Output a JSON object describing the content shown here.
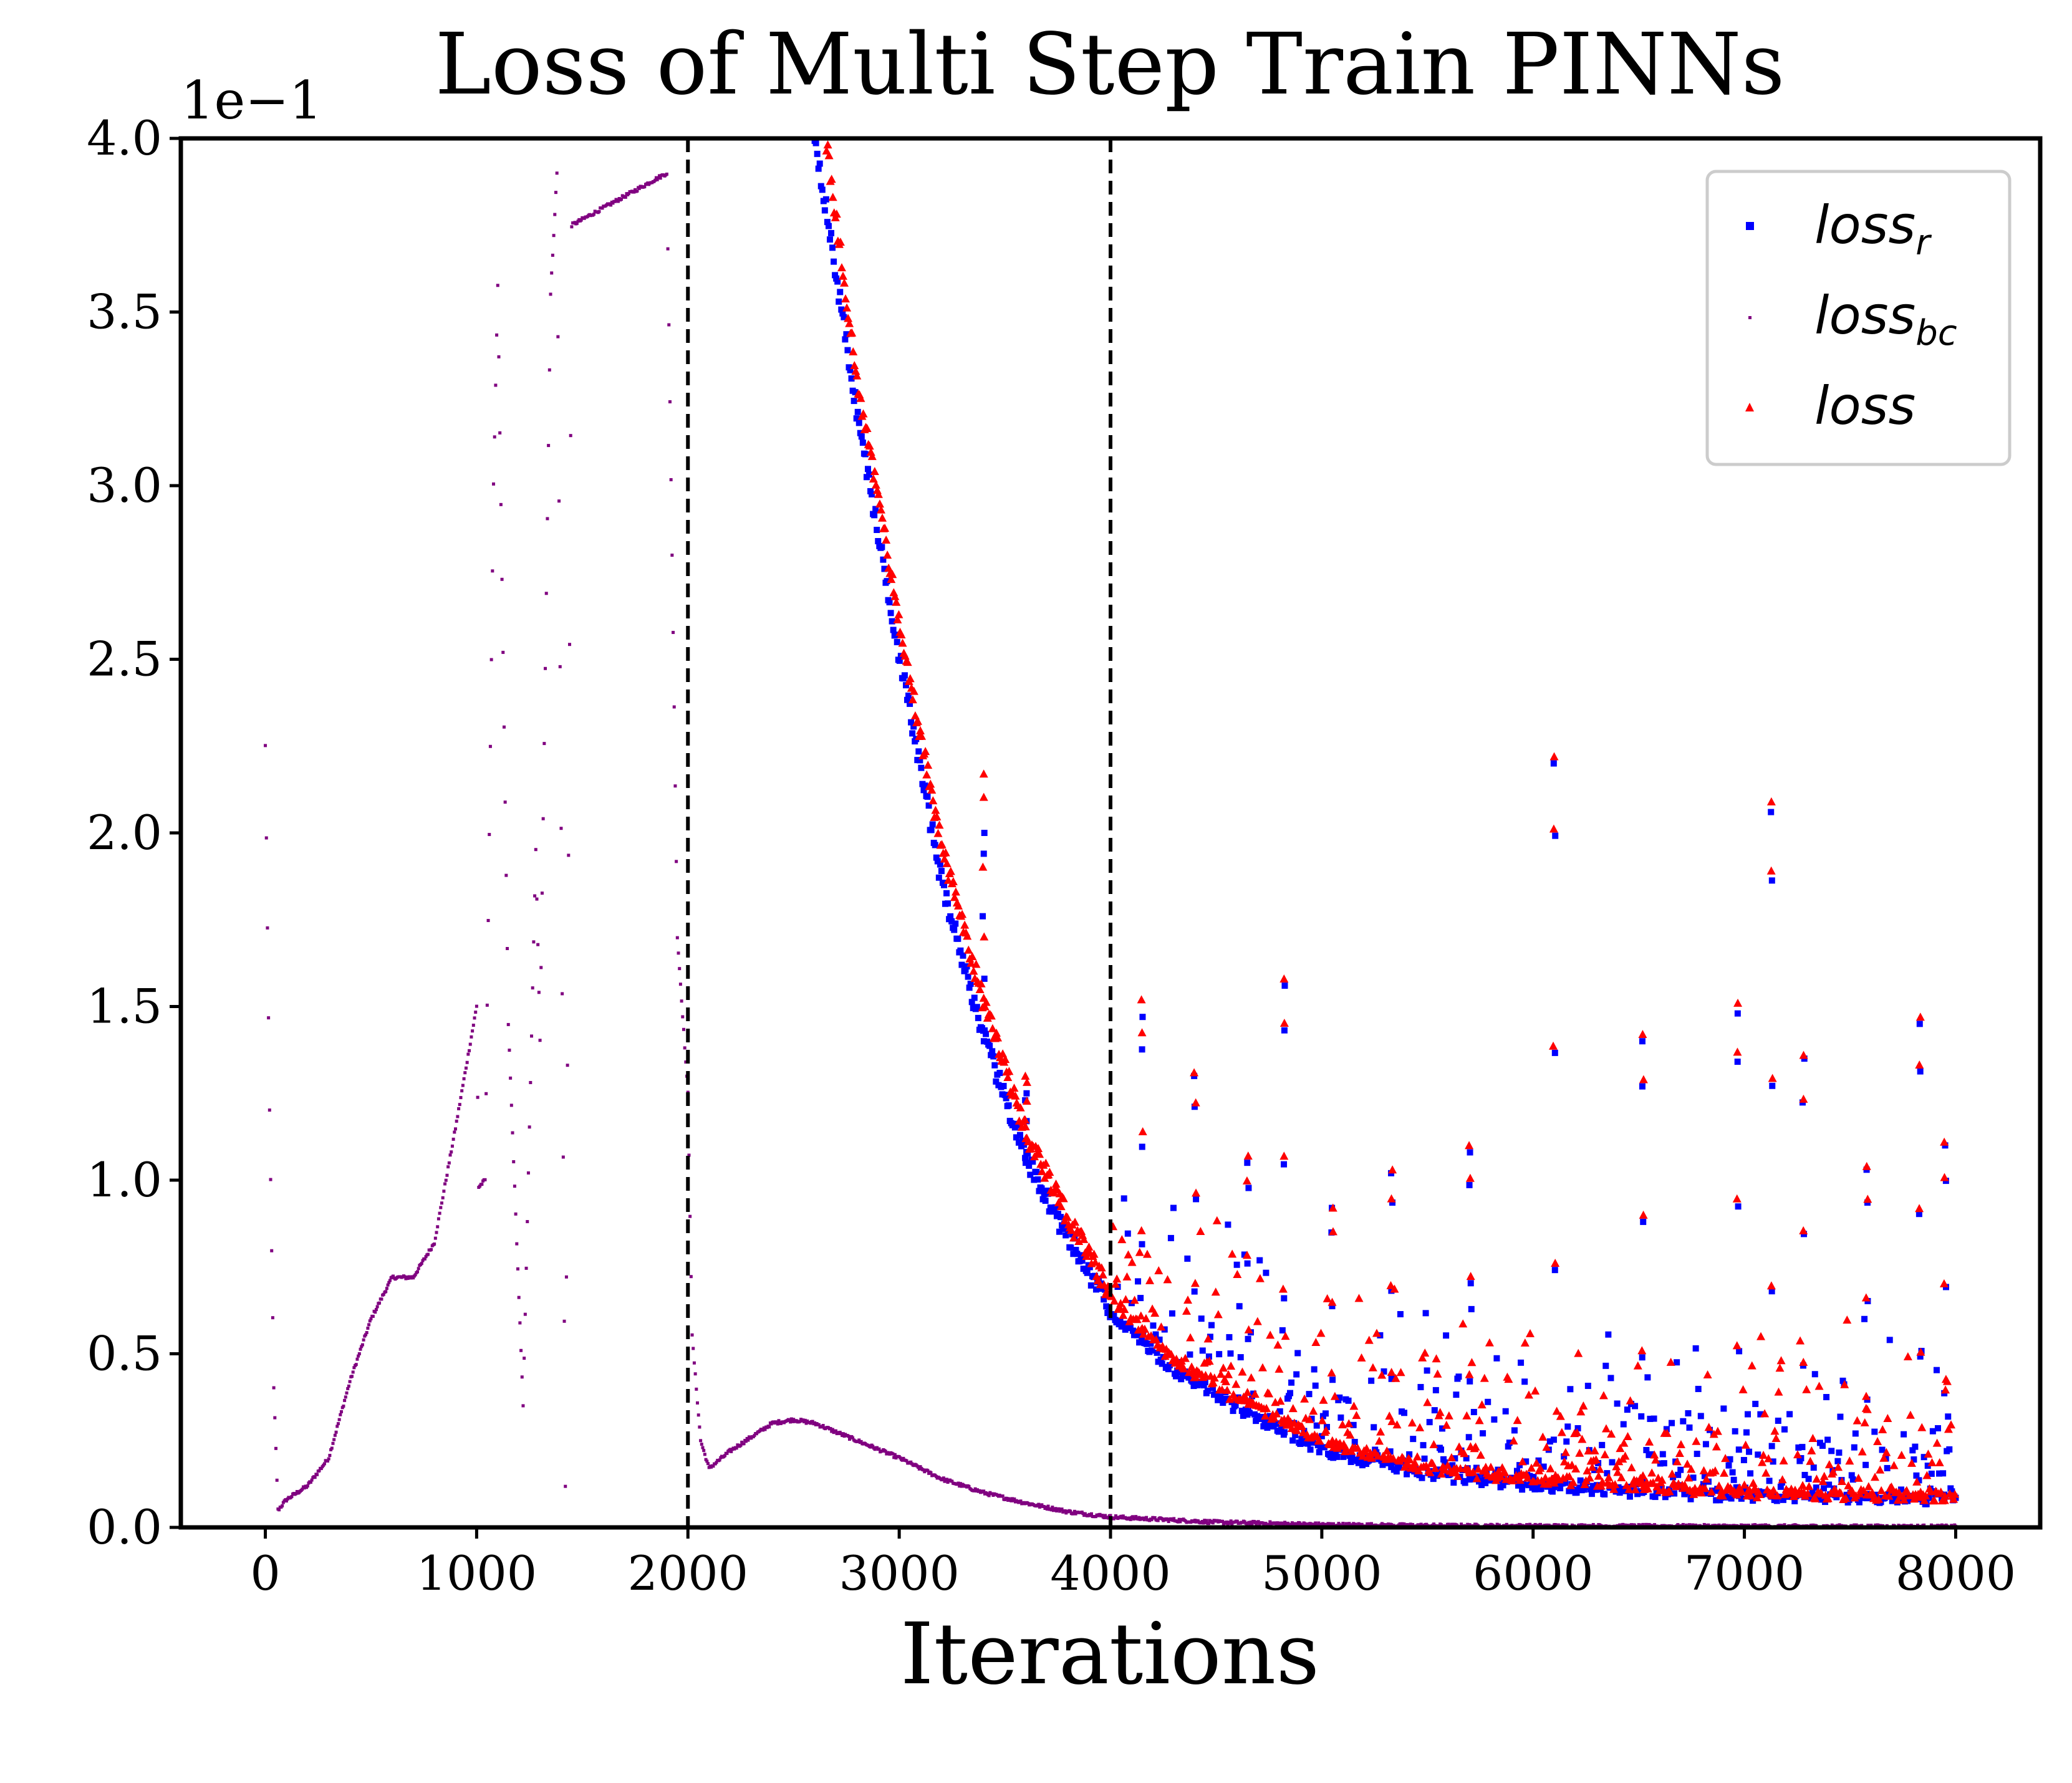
{
  "chart_data": {
    "type": "scatter",
    "title": "Loss of Multi Step Train PINNs",
    "xlabel": "Iterations",
    "ylabel": "",
    "y_scale_label": "1e−1",
    "xlim": [
      -400,
      8400
    ],
    "ylim": [
      0,
      4.0
    ],
    "x_ticks": [
      0,
      1000,
      2000,
      3000,
      4000,
      5000,
      6000,
      7000,
      8000
    ],
    "x_tick_labels": [
      "0",
      "1000",
      "2000",
      "3000",
      "4000",
      "5000",
      "6000",
      "7000",
      "8000"
    ],
    "y_ticks": [
      0.0,
      0.5,
      1.0,
      1.5,
      2.0,
      2.5,
      3.0,
      3.5,
      4.0
    ],
    "y_tick_labels": [
      "0.0",
      "0.5",
      "1.0",
      "1.5",
      "2.0",
      "2.5",
      "3.0",
      "3.5",
      "4.0"
    ],
    "grid": false,
    "legend_position": "top-right",
    "vlines": [
      2000,
      4000
    ],
    "series": [
      {
        "key": "loss_r",
        "legend": "loss",
        "legend_sub": "r",
        "marker": "square",
        "color": "#0000ff",
        "x": [
          2600,
          2800,
          3000,
          3200,
          3400,
          3600,
          3800,
          4000,
          4300,
          4600,
          5000,
          5500,
          6000,
          6500,
          7000,
          7500,
          8000
        ],
        "values": [
          4.0,
          3.2,
          2.5,
          1.85,
          1.4,
          1.05,
          0.82,
          0.62,
          0.45,
          0.34,
          0.22,
          0.15,
          0.12,
          0.1,
          0.09,
          0.085,
          0.08
        ],
        "spikes_x": [
          3400,
          3600,
          4150,
          4400,
          4650,
          4820,
          5050,
          5330,
          5700,
          6100,
          6520,
          6970,
          7130,
          7280,
          7580,
          7830,
          7950
        ],
        "spikes_y": [
          2.0,
          1.25,
          1.47,
          1.3,
          1.05,
          1.56,
          0.92,
          1.02,
          1.08,
          2.2,
          1.4,
          1.48,
          2.06,
          1.35,
          1.03,
          1.45,
          1.1
        ]
      },
      {
        "key": "loss_bc",
        "legend": "loss",
        "legend_sub": "bc",
        "marker": "point",
        "color": "#800080",
        "x": [
          0,
          20,
          40,
          60,
          100,
          200,
          300,
          400,
          500,
          600,
          700,
          800,
          900,
          1000,
          1010,
          1040,
          1080,
          1100,
          1150,
          1220,
          1280,
          1300,
          1350,
          1380,
          1420,
          1450,
          1900,
          1950,
          2000,
          2020,
          2060,
          2100,
          2200,
          2400,
          2500,
          2600,
          2800,
          3000,
          3200,
          3400,
          3600,
          3800,
          4000,
          4500,
          5000,
          5500,
          6000,
          7000,
          8000
        ],
        "values": [
          2.25,
          1.2,
          0.4,
          0.05,
          0.08,
          0.12,
          0.2,
          0.42,
          0.6,
          0.72,
          0.72,
          0.82,
          1.15,
          1.5,
          0.98,
          1.0,
          3.0,
          3.58,
          1.45,
          0.35,
          1.95,
          1.4,
          3.55,
          3.9,
          0.12,
          3.75,
          3.9,
          1.7,
          1.25,
          0.55,
          0.25,
          0.17,
          0.22,
          0.3,
          0.31,
          0.3,
          0.25,
          0.2,
          0.14,
          0.1,
          0.07,
          0.045,
          0.03,
          0.015,
          0.008,
          0.005,
          0.004,
          0.003,
          0.002
        ]
      },
      {
        "key": "loss",
        "legend": "loss",
        "legend_sub": "",
        "marker": "triangle",
        "color": "#ff0000",
        "x": [
          2650,
          2800,
          3000,
          3200,
          3400,
          3600,
          3800,
          4000,
          4300,
          4600,
          5000,
          5500,
          6000,
          6500,
          7000,
          7500,
          8000
        ],
        "values": [
          4.0,
          3.3,
          2.6,
          1.95,
          1.5,
          1.12,
          0.88,
          0.66,
          0.48,
          0.37,
          0.25,
          0.17,
          0.14,
          0.12,
          0.1,
          0.095,
          0.09
        ],
        "spikes_x": [
          3400,
          3600,
          4150,
          4400,
          4650,
          4820,
          5050,
          5330,
          5700,
          6100,
          6520,
          6970,
          7130,
          7280,
          7580,
          7830,
          7950
        ],
        "spikes_y": [
          2.17,
          1.3,
          1.52,
          1.31,
          1.07,
          1.58,
          0.92,
          1.03,
          1.1,
          2.22,
          1.42,
          1.51,
          2.09,
          1.36,
          1.04,
          1.47,
          1.11
        ]
      }
    ]
  }
}
